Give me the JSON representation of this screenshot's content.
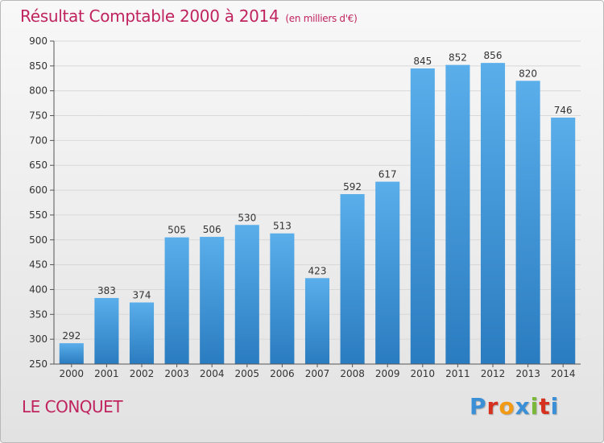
{
  "header": {
    "title": "Résultat Comptable 2000 à 2014",
    "subtitle": "(en milliers d'€)"
  },
  "footer": {
    "commune": "LE CONQUET",
    "logo": "Proxiti",
    "logo_colors": [
      "#3a8fd6",
      "#d6301f",
      "#f29a12",
      "#3a8fd6",
      "#7ab83a",
      "#d6301f",
      "#3a8fd6"
    ]
  },
  "colors": {
    "bar_top": "#5aaeea",
    "bar_bottom": "#2a7cc0",
    "grid": "#d8d8d8",
    "axis_text": "#333333",
    "accent": "#c0245f"
  },
  "chart_data": {
    "type": "bar",
    "title": "Résultat Comptable 2000 à 2014",
    "xlabel": "",
    "ylabel": "",
    "categories": [
      "2000",
      "2001",
      "2002",
      "2003",
      "2004",
      "2005",
      "2006",
      "2007",
      "2008",
      "2009",
      "2010",
      "2011",
      "2012",
      "2013",
      "2014"
    ],
    "values": [
      292,
      383,
      374,
      505,
      506,
      530,
      513,
      423,
      592,
      617,
      845,
      852,
      856,
      820,
      746
    ],
    "ylim": [
      250,
      900
    ],
    "yticks": [
      250,
      300,
      350,
      400,
      450,
      500,
      550,
      600,
      650,
      700,
      750,
      800,
      850,
      900
    ],
    "grid": true,
    "legend": "none"
  }
}
